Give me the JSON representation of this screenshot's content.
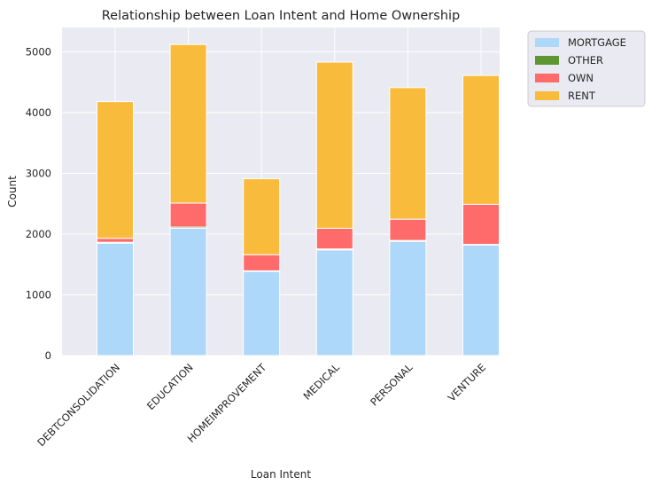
{
  "chart_data": {
    "type": "bar",
    "stacked": true,
    "title": "Relationship between Loan Intent and Home Ownership",
    "xlabel": "Loan Intent",
    "ylabel": "Count",
    "ylim": [
      0,
      5400
    ],
    "yticks": [
      0,
      1000,
      2000,
      3000,
      4000,
      5000
    ],
    "grid": true,
    "legend_placement": "outside-top-right",
    "categories": [
      "DEBTCONSOLIDATION",
      "EDUCATION",
      "HOMEIMPROVEMENT",
      "MEDICAL",
      "PERSONAL",
      "VENTURE"
    ],
    "series": [
      {
        "name": "MORTGAGE",
        "color": "#add8fa",
        "values": [
          1850,
          2095,
          1385,
          1740,
          1880,
          1820
        ]
      },
      {
        "name": "OTHER",
        "color": "#5f9630",
        "values": [
          15,
          20,
          10,
          15,
          15,
          10
        ]
      },
      {
        "name": "OWN",
        "color": "#ff6b6b",
        "values": [
          65,
          395,
          265,
          340,
          350,
          660
        ]
      },
      {
        "name": "RENT",
        "color": "#f8bb3c",
        "values": [
          2250,
          2610,
          1250,
          2735,
          2165,
          2120
        ]
      }
    ]
  }
}
